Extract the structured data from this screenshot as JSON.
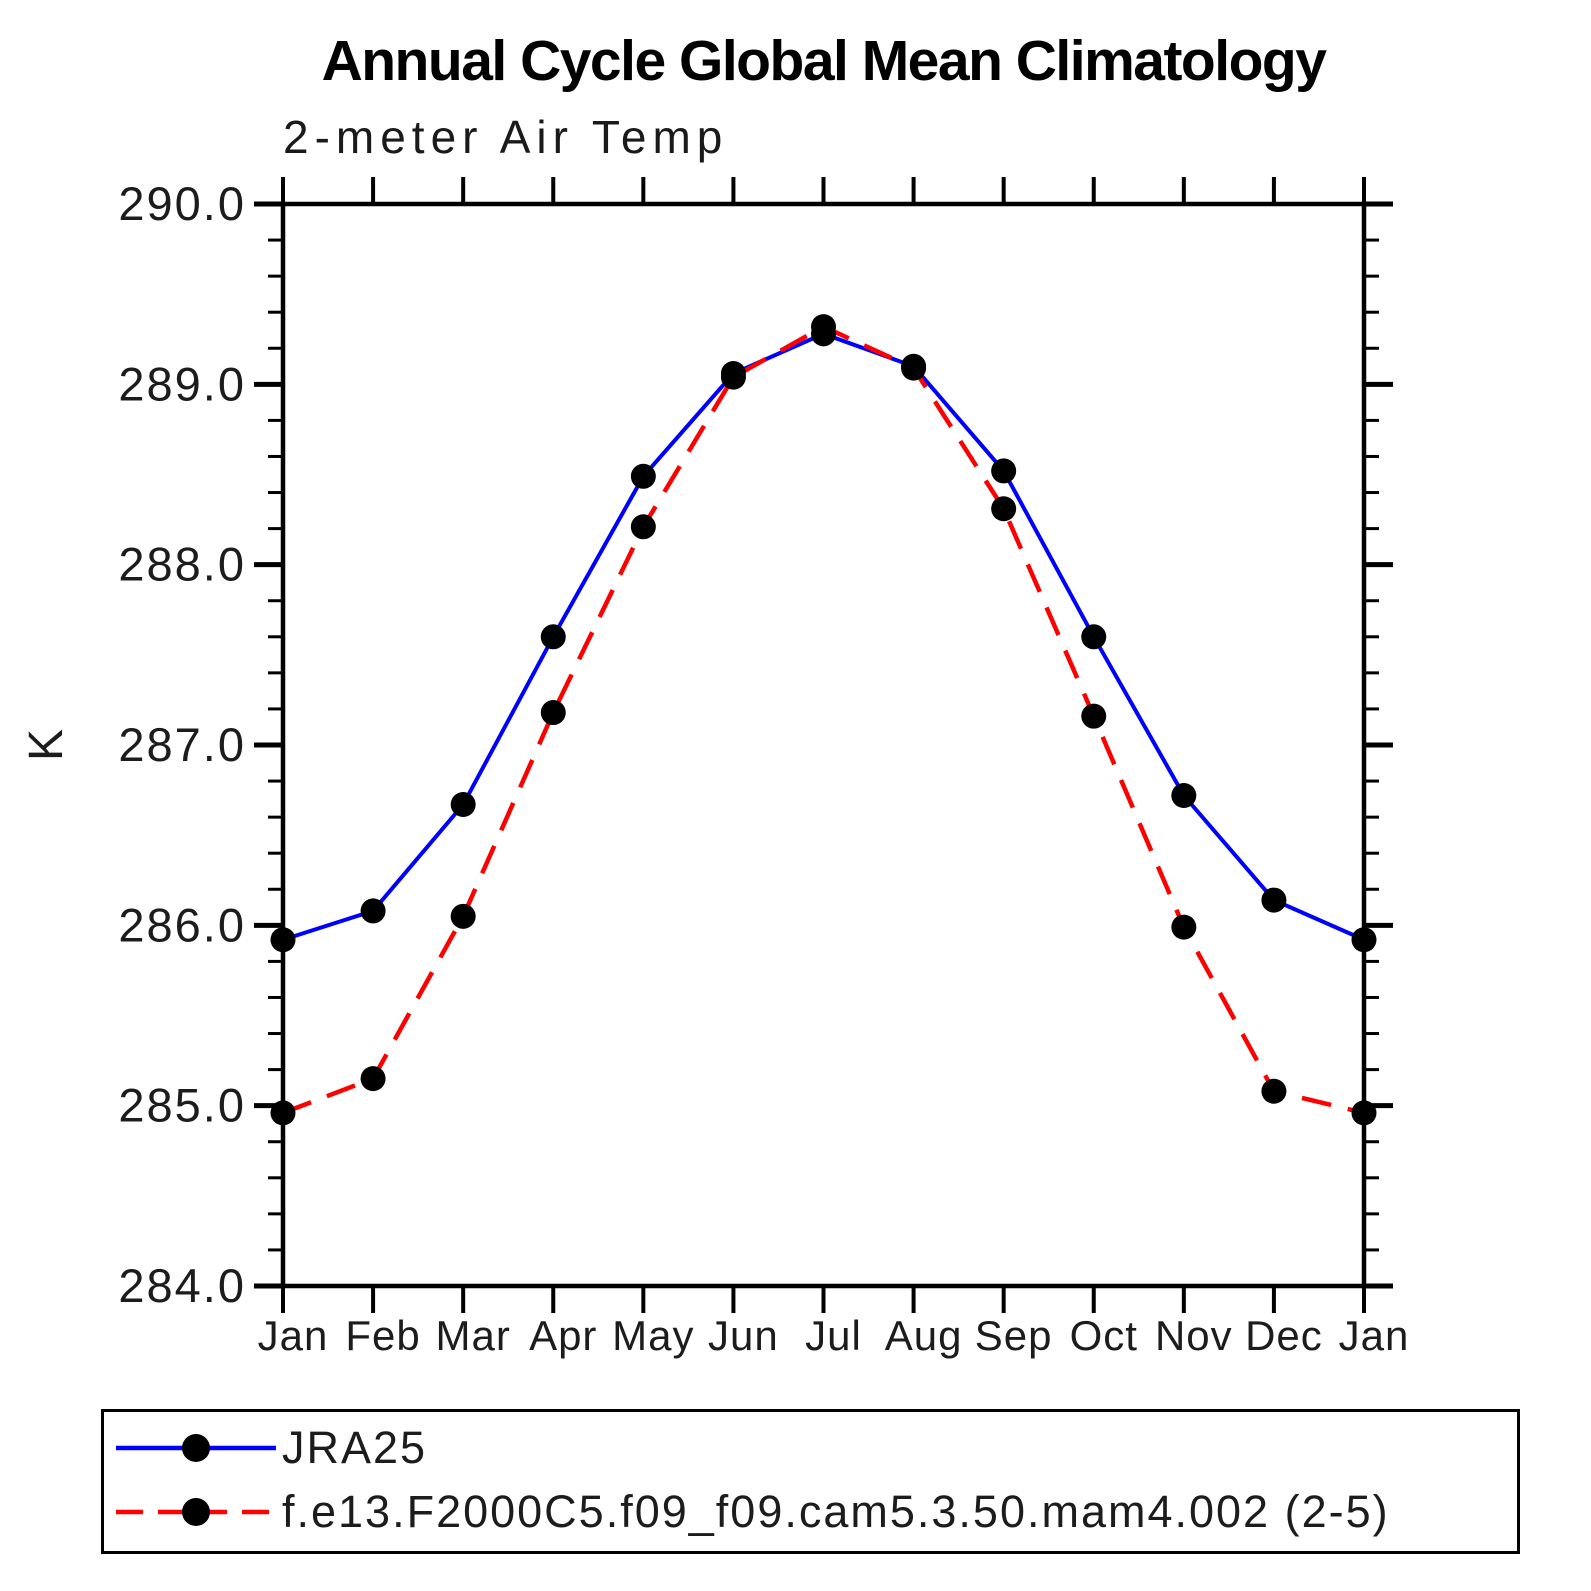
{
  "chart_data": {
    "type": "line",
    "title": "Annual Cycle Global Mean Climatology",
    "subtitle": "2-meter Air Temp",
    "ylabel": "K",
    "categories": [
      "Jan",
      "Feb",
      "Mar",
      "Apr",
      "May",
      "Jun",
      "Jul",
      "Aug",
      "Sep",
      "Oct",
      "Nov",
      "Dec",
      "Jan"
    ],
    "ylim": [
      284.0,
      290.0
    ],
    "y_major_tick_step": 1.0,
    "y_minor_tick_step": 0.2,
    "y_tick_labels": [
      "290.0",
      "289.0",
      "288.0",
      "287.0",
      "286.0",
      "285.0",
      "284.0"
    ],
    "grid": false,
    "frame_color": "#000000",
    "legend_position": "bottom-left",
    "series": [
      {
        "name": "JRA25",
        "color": "#0000ff",
        "line_style": "solid",
        "marker": "circle",
        "marker_color": "#000000",
        "values": [
          285.92,
          286.08,
          286.67,
          287.6,
          288.49,
          289.06,
          289.28,
          289.1,
          288.52,
          287.6,
          286.72,
          286.14,
          285.92
        ]
      },
      {
        "name": "f.e13.F2000C5.f09_f09.cam5.3.50.mam4.002 (2-5)",
        "color": "#ff0000",
        "line_style": "dashed",
        "marker": "circle",
        "marker_color": "#000000",
        "values": [
          284.96,
          285.15,
          286.05,
          287.18,
          288.21,
          289.04,
          289.32,
          289.09,
          288.31,
          287.16,
          285.99,
          285.08,
          284.96
        ]
      }
    ]
  }
}
